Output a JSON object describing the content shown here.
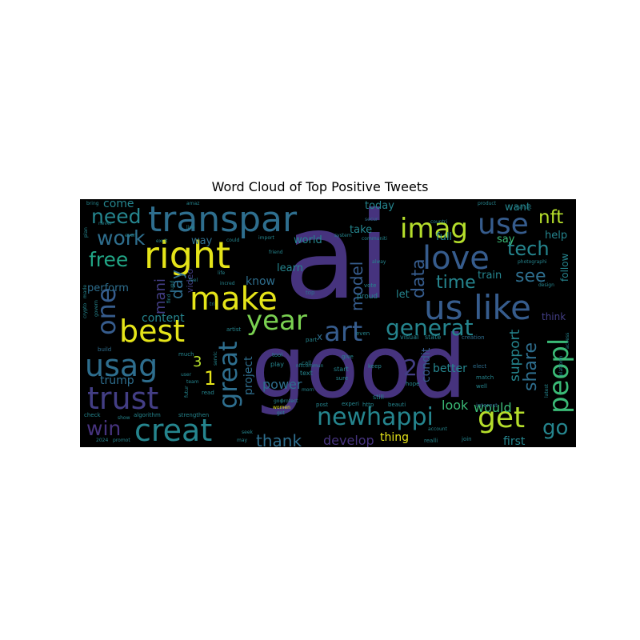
{
  "chart_data": {
    "type": "wordcloud",
    "title": "Word Cloud of Top Positive Tweets",
    "background": "#000000",
    "colormap": "viridis",
    "palette": {
      "purple": "#46337e",
      "indigo": "#433e85",
      "blue": "#365c8d",
      "steel": "#2e6e8e",
      "teal": "#25858e",
      "aqua": "#21a585",
      "green": "#3aba76",
      "lime": "#7ad151",
      "yellowgreen": "#b5de2b",
      "yellow": "#e5e419"
    },
    "words": [
      {
        "text": "ai",
        "c": "purple"
      },
      {
        "text": "good",
        "c": "purple"
      },
      {
        "text": "transpar",
        "c": "steel"
      },
      {
        "text": "right",
        "c": "yellow"
      },
      {
        "text": "make",
        "c": "yellow"
      },
      {
        "text": "best",
        "c": "yellow"
      },
      {
        "text": "trust",
        "c": "indigo"
      },
      {
        "text": "creat",
        "c": "teal"
      },
      {
        "text": "usag",
        "c": "steel"
      },
      {
        "text": "one",
        "c": "blue"
      },
      {
        "text": "like",
        "c": "blue"
      },
      {
        "text": "us",
        "c": "blue"
      },
      {
        "text": "love",
        "c": "blue"
      },
      {
        "text": "use",
        "c": "blue"
      },
      {
        "text": "imag",
        "c": "yellowgreen"
      },
      {
        "text": "peopl",
        "c": "green"
      },
      {
        "text": "get",
        "c": "yellowgreen"
      },
      {
        "text": "newhappi",
        "c": "teal"
      },
      {
        "text": "art",
        "c": "blue"
      },
      {
        "text": "generat",
        "c": "teal"
      },
      {
        "text": "year",
        "c": "lime"
      },
      {
        "text": "great",
        "c": "steel"
      },
      {
        "text": "work",
        "c": "steel"
      },
      {
        "text": "need",
        "c": "teal"
      },
      {
        "text": "free",
        "c": "aqua"
      },
      {
        "text": "win",
        "c": "purple"
      },
      {
        "text": "nft",
        "c": "yellowgreen"
      },
      {
        "text": "tech",
        "c": "teal"
      },
      {
        "text": "see",
        "c": "steel"
      },
      {
        "text": "time",
        "c": "teal"
      },
      {
        "text": "data",
        "c": "blue"
      },
      {
        "text": "model",
        "c": "blue"
      },
      {
        "text": "share",
        "c": "steel"
      },
      {
        "text": "support",
        "c": "teal"
      },
      {
        "text": "go",
        "c": "teal"
      },
      {
        "text": "thank",
        "c": "steel"
      },
      {
        "text": "day",
        "c": "steel"
      },
      {
        "text": "mani",
        "c": "indigo"
      },
      {
        "text": "2",
        "c": "indigo"
      },
      {
        "text": "1",
        "c": "yellow"
      },
      {
        "text": "3",
        "c": "yellowgreen"
      },
      {
        "text": "power",
        "c": "steel"
      },
      {
        "text": "project",
        "c": "steel"
      },
      {
        "text": "develop",
        "c": "purple"
      },
      {
        "text": "thing",
        "c": "yellow"
      },
      {
        "text": "better",
        "c": "teal"
      },
      {
        "text": "look",
        "c": "green"
      },
      {
        "text": "condit",
        "c": "blue"
      },
      {
        "text": "would",
        "c": "green"
      },
      {
        "text": "first",
        "c": "teal"
      },
      {
        "text": "come",
        "c": "teal"
      },
      {
        "text": "content",
        "c": "teal"
      },
      {
        "text": "perform",
        "c": "steel"
      },
      {
        "text": "trump",
        "c": "steel"
      },
      {
        "text": "know",
        "c": "steel"
      },
      {
        "text": "learn",
        "c": "teal"
      },
      {
        "text": "world",
        "c": "teal"
      },
      {
        "text": "today",
        "c": "teal"
      },
      {
        "text": "take",
        "c": "teal"
      },
      {
        "text": "way",
        "c": "steel"
      },
      {
        "text": "want",
        "c": "teal"
      },
      {
        "text": "help",
        "c": "teal"
      },
      {
        "text": "full",
        "c": "teal"
      },
      {
        "text": "say",
        "c": "green"
      },
      {
        "text": "train",
        "c": "teal"
      },
      {
        "text": "follow",
        "c": "teal"
      },
      {
        "text": "think",
        "c": "indigo"
      },
      {
        "text": "let",
        "c": "teal"
      },
      {
        "text": "video",
        "c": "indigo"
      },
      {
        "text": "proud",
        "c": "teal"
      },
      {
        "text": "vote",
        "c": "teal"
      },
      {
        "text": "top",
        "c": "steel"
      },
      {
        "text": "part",
        "c": "teal"
      },
      {
        "text": "state",
        "c": "teal"
      },
      {
        "text": "visual",
        "c": "teal"
      },
      {
        "text": "creation",
        "c": "steel"
      },
      {
        "text": "tool",
        "c": "teal"
      },
      {
        "text": "play",
        "c": "teal"
      },
      {
        "text": "call",
        "c": "teal"
      },
      {
        "text": "text",
        "c": "teal"
      },
      {
        "text": "start",
        "c": "teal"
      },
      {
        "text": "sure",
        "c": "teal"
      },
      {
        "text": "give",
        "c": "teal"
      },
      {
        "text": "keep",
        "c": "teal"
      },
      {
        "text": "still",
        "c": "teal"
      },
      {
        "text": "hope",
        "c": "teal"
      },
      {
        "text": "elect",
        "c": "steel"
      },
      {
        "text": "match",
        "c": "teal"
      },
      {
        "text": "well",
        "c": "teal"
      },
      {
        "text": "interest",
        "c": "steel"
      },
      {
        "text": "post",
        "c": "teal"
      },
      {
        "text": "experi",
        "c": "teal"
      },
      {
        "text": "http",
        "c": "teal"
      },
      {
        "text": "beauti",
        "c": "teal"
      },
      {
        "text": "realli",
        "c": "teal"
      },
      {
        "text": "join",
        "c": "teal"
      },
      {
        "text": "read",
        "c": "teal"
      },
      {
        "text": "futur",
        "c": "teal"
      },
      {
        "text": "servic",
        "c": "teal"
      },
      {
        "text": "artist",
        "c": "teal"
      },
      {
        "text": "incred",
        "c": "teal"
      },
      {
        "text": "life",
        "c": "teal"
      },
      {
        "text": "live",
        "c": "teal"
      },
      {
        "text": "could",
        "c": "teal"
      },
      {
        "text": "import",
        "c": "teal"
      },
      {
        "text": "friend",
        "c": "teal"
      },
      {
        "text": "system",
        "c": "teal"
      },
      {
        "text": "communiti",
        "c": "teal"
      },
      {
        "text": "alway",
        "c": "teal"
      },
      {
        "text": "secur",
        "c": "steel"
      },
      {
        "text": "countri",
        "c": "teal"
      },
      {
        "text": "product",
        "c": "teal"
      },
      {
        "text": "photographi",
        "c": "teal"
      },
      {
        "text": "design",
        "c": "teal"
      },
      {
        "text": "platform",
        "c": "teal"
      },
      {
        "text": "access",
        "c": "teal"
      },
      {
        "text": "latest",
        "c": "teal"
      },
      {
        "text": "account",
        "c": "teal"
      },
      {
        "text": "nftcommun",
        "c": "teal"
      },
      {
        "text": "morn",
        "c": "teal"
      },
      {
        "text": "women",
        "c": "yellow"
      },
      {
        "text": "got",
        "c": "teal"
      },
      {
        "text": "seek",
        "c": "teal"
      },
      {
        "text": "may",
        "c": "teal"
      },
      {
        "text": "algorithm",
        "c": "teal"
      },
      {
        "text": "strengthen",
        "c": "teal"
      },
      {
        "text": "check",
        "c": "teal"
      },
      {
        "text": "show",
        "c": "teal"
      },
      {
        "text": "2024",
        "c": "teal"
      },
      {
        "text": "promot",
        "c": "teal"
      },
      {
        "text": "much",
        "c": "teal"
      },
      {
        "text": "team",
        "c": "teal"
      },
      {
        "text": "user",
        "c": "teal"
      },
      {
        "text": "made",
        "c": "teal"
      },
      {
        "text": "crypto",
        "c": "teal"
      },
      {
        "text": "govern",
        "c": "teal"
      },
      {
        "text": "never",
        "c": "teal"
      },
      {
        "text": "everi",
        "c": "teal"
      },
      {
        "text": "excit",
        "c": "teal"
      },
      {
        "text": "bring",
        "c": "teal"
      },
      {
        "text": "amaz",
        "c": "teal"
      },
      {
        "text": "find",
        "c": "teal"
      },
      {
        "text": "upd",
        "c": "teal"
      },
      {
        "text": "feel",
        "c": "teal"
      },
      {
        "text": "tri",
        "c": "teal"
      },
      {
        "text": "build",
        "c": "steel"
      },
      {
        "text": "x",
        "c": "steel"
      },
      {
        "text": "even",
        "c": "teal"
      },
      {
        "text": "market",
        "c": "teal"
      },
      {
        "text": "plan",
        "c": "teal"
      },
      {
        "text": "god",
        "c": "teal"
      },
      {
        "text": "protect",
        "c": "teal"
      }
    ]
  }
}
